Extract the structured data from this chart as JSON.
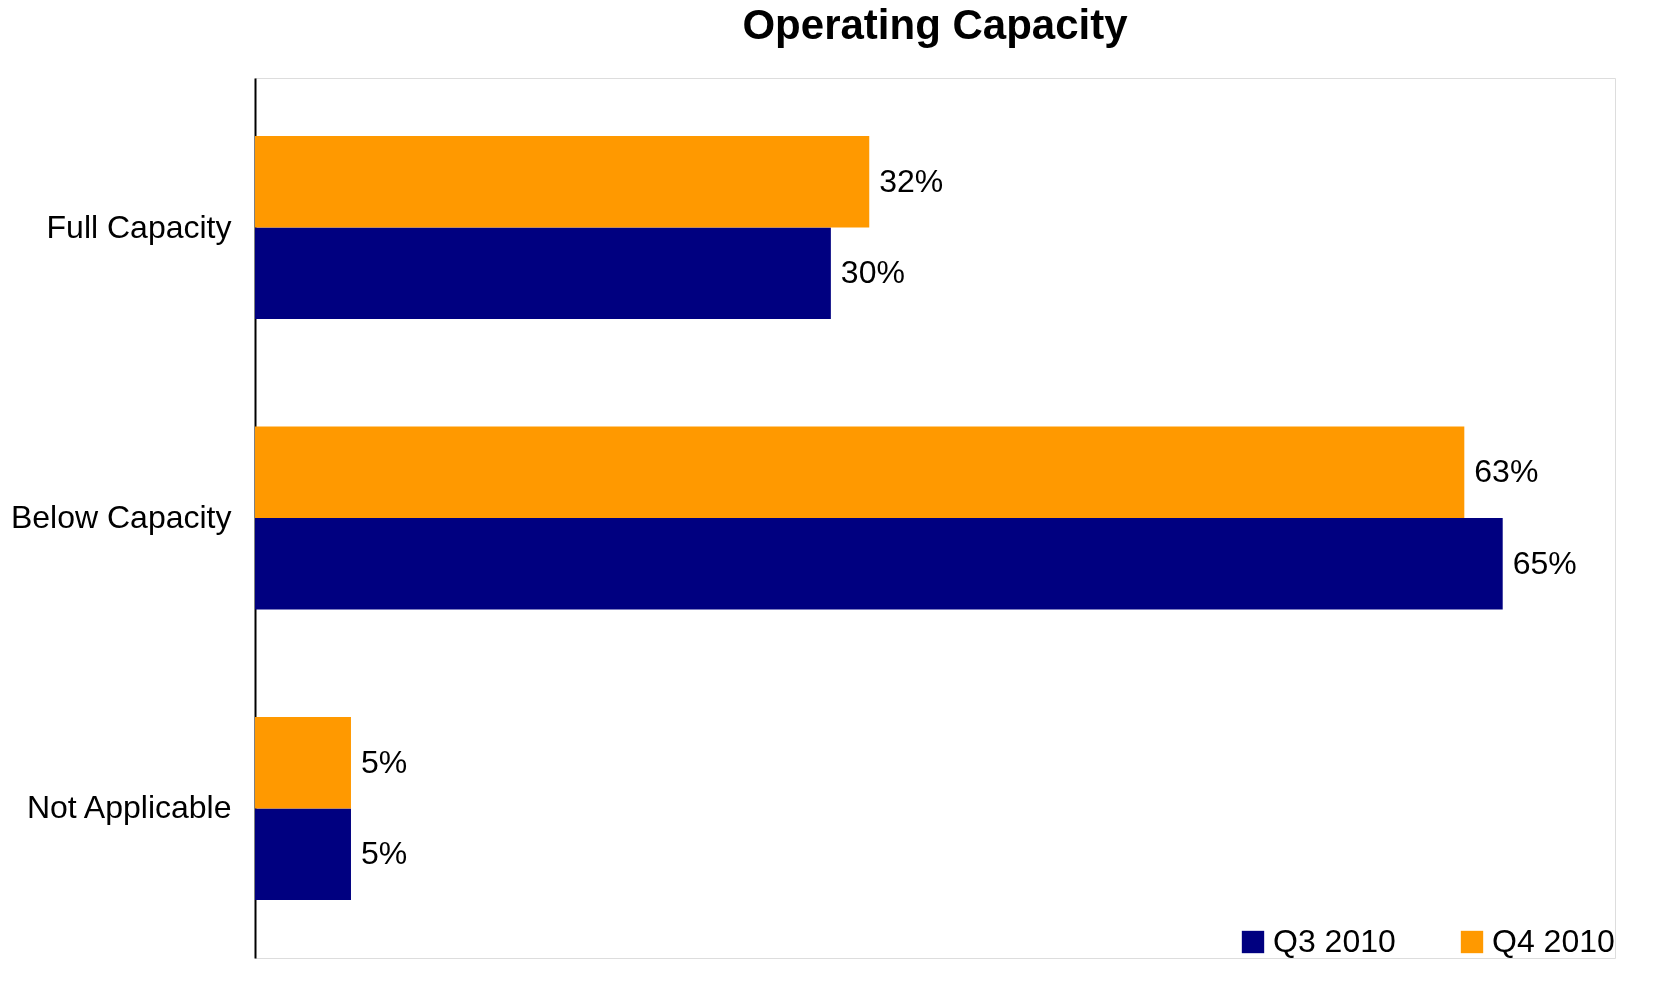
{
  "chart_data": {
    "type": "bar",
    "orientation": "horizontal",
    "title": "Operating Capacity",
    "categories": [
      "Full Capacity",
      "Below Capacity",
      "Not Applicable"
    ],
    "series": [
      {
        "name": "Q3 2010",
        "color": "#000080",
        "values": [
          30,
          65,
          5
        ],
        "value_labels": [
          "30%",
          "65%",
          "5%"
        ]
      },
      {
        "name": "Q4 2010",
        "color": "#ff9900",
        "values": [
          32,
          63,
          5
        ],
        "value_labels": [
          "32%",
          "63%",
          "5%"
        ]
      }
    ],
    "tick_labels": "y",
    "legend": "bottom right"
  }
}
